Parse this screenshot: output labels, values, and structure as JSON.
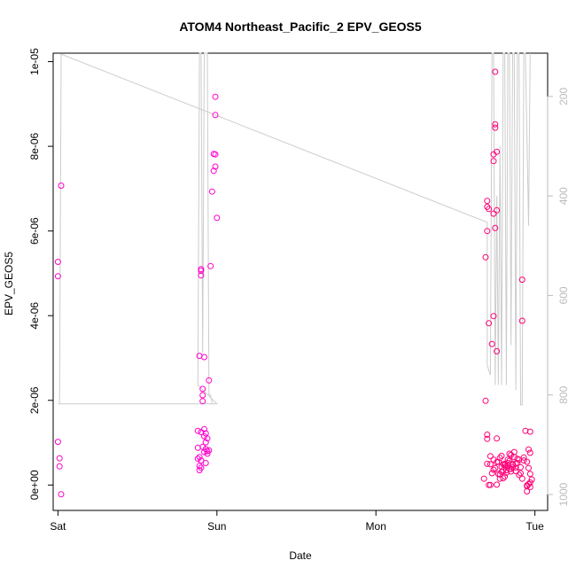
{
  "chart_data": {
    "type": "scatter",
    "title": "ATOM4 Northeast_Pacific_2 EPV_GEOS5",
    "xlabel": "Date",
    "ylabel": "EPV_GEOS5",
    "x_ticks": [
      "Sat",
      "Sun",
      "Mon",
      "Tue"
    ],
    "x_range_days": [
      -0.03,
      3.08
    ],
    "y_ticks": [
      "0e+00",
      "2e-06",
      "4e-06",
      "6e-06",
      "8e-06",
      "1e-05"
    ],
    "y_tick_values": [
      0,
      2e-06,
      4e-06,
      6e-06,
      8e-06,
      1e-05
    ],
    "ylim": [
      -6e-07,
      1.02e-05
    ],
    "y2_ticks": [
      "200",
      "400",
      "600",
      "800",
      "1000"
    ],
    "y2_tick_values": [
      200,
      400,
      600,
      800,
      1000
    ],
    "y2lim": [
      1032,
      113
    ],
    "y2_reversed": true,
    "point_color": "#ff00cc",
    "point_color_late": "#ff0077",
    "line_color": "#cccccc",
    "grid": false,
    "points": [
      [
        0.02,
        7.07e-06
      ],
      [
        0.0,
        5.27e-06
      ],
      [
        0.0,
        4.93e-06
      ],
      [
        0.0,
        1.02e-06
      ],
      [
        0.01,
        6.3e-07
      ],
      [
        0.01,
        4.4e-07
      ],
      [
        0.02,
        -2.2e-07
      ],
      [
        0.89,
        3.05e-06
      ],
      [
        0.9,
        5.1e-06
      ],
      [
        0.9,
        5.06e-06
      ],
      [
        0.9,
        4.95e-06
      ],
      [
        0.92,
        3.02e-06
      ],
      [
        0.91,
        2.27e-06
      ],
      [
        0.91,
        2.12e-06
      ],
      [
        0.91,
        1.98e-06
      ],
      [
        0.95,
        2.47e-06
      ],
      [
        0.96,
        5.17e-06
      ],
      [
        0.97,
        6.93e-06
      ],
      [
        0.99,
        9.17e-06
      ],
      [
        0.99,
        8.74e-06
      ],
      [
        0.98,
        7.82e-06
      ],
      [
        0.99,
        7.81e-06
      ],
      [
        0.99,
        7.52e-06
      ],
      [
        0.98,
        7.42e-06
      ],
      [
        1.0,
        6.31e-06
      ],
      [
        0.88,
        1.28e-06
      ],
      [
        0.9,
        1.25e-06
      ],
      [
        0.92,
        1.32e-06
      ],
      [
        0.93,
        1.22e-06
      ],
      [
        0.92,
        1.15e-06
      ],
      [
        0.94,
        1.1e-06
      ],
      [
        0.93,
        1.01e-06
      ],
      [
        0.91,
        9e-07
      ],
      [
        0.88,
        8.8e-07
      ],
      [
        0.93,
        8.5e-07
      ],
      [
        0.94,
        8e-07
      ],
      [
        0.92,
        7.8e-07
      ],
      [
        0.94,
        7.4e-07
      ],
      [
        0.89,
        6.6e-07
      ],
      [
        0.88,
        6.2e-07
      ],
      [
        0.9,
        5.8e-07
      ],
      [
        0.93,
        5.2e-07
      ],
      [
        0.89,
        4.5e-07
      ],
      [
        0.9,
        4.1e-07
      ],
      [
        0.89,
        3.5e-07
      ],
      [
        0.95,
        8.2e-07
      ],
      [
        2.7,
        6.71e-06
      ],
      [
        2.7,
        6.57e-06
      ],
      [
        2.71,
        6.52e-06
      ],
      [
        2.7,
        6e-06
      ],
      [
        2.69,
        5.38e-06
      ],
      [
        2.71,
        3.82e-06
      ],
      [
        2.73,
        3.33e-06
      ],
      [
        2.74,
        3.99e-06
      ],
      [
        2.74,
        6.41e-06
      ],
      [
        2.75,
        9.76e-06
      ],
      [
        2.75,
        8.52e-06
      ],
      [
        2.75,
        8.44e-06
      ],
      [
        2.74,
        7.81e-06
      ],
      [
        2.74,
        7.65e-06
      ],
      [
        2.76,
        7.87e-06
      ],
      [
        2.76,
        6.49e-06
      ],
      [
        2.75,
        6.07e-06
      ],
      [
        2.76,
        3.16e-06
      ],
      [
        2.69,
        1.99e-06
      ],
      [
        2.7,
        1.19e-06
      ],
      [
        2.7,
        1.09e-06
      ],
      [
        2.92,
        4.85e-06
      ],
      [
        2.92,
        3.88e-06
      ],
      [
        2.72,
        6.8e-07
      ],
      [
        2.74,
        6e-07
      ],
      [
        2.76,
        5.4e-07
      ],
      [
        2.78,
        6.4e-07
      ],
      [
        2.8,
        4.9e-07
      ],
      [
        2.82,
        4.4e-07
      ],
      [
        2.84,
        5.7e-07
      ],
      [
        2.86,
        5e-07
      ],
      [
        2.88,
        4.1e-07
      ],
      [
        2.9,
        6e-07
      ],
      [
        2.72,
        4.9e-07
      ],
      [
        2.74,
        3.6e-07
      ],
      [
        2.78,
        2.5e-07
      ],
      [
        2.8,
        1.6e-07
      ],
      [
        2.82,
        2.9e-07
      ],
      [
        2.84,
        3.8e-07
      ],
      [
        2.86,
        4.7e-07
      ],
      [
        2.88,
        3.3e-07
      ],
      [
        2.9,
        2.4e-07
      ],
      [
        2.92,
        1.5e-07
      ],
      [
        2.76,
        1.1e-06
      ],
      [
        2.77,
        2.6e-07
      ],
      [
        2.79,
        3.1e-07
      ],
      [
        2.81,
        2e-07
      ],
      [
        2.83,
        6e-07
      ],
      [
        2.85,
        7.1e-07
      ],
      [
        2.87,
        6.6e-07
      ],
      [
        2.89,
        5.2e-07
      ],
      [
        2.91,
        4.2e-07
      ],
      [
        2.93,
        6.5e-07
      ],
      [
        2.94,
        1.28e-06
      ],
      [
        2.97,
        1.26e-06
      ],
      [
        2.96,
        8.4e-07
      ],
      [
        2.97,
        7.6e-07
      ],
      [
        2.95,
        5.5e-07
      ],
      [
        2.96,
        4e-07
      ],
      [
        2.97,
        2.6e-07
      ],
      [
        2.98,
        1.3e-07
      ],
      [
        2.96,
        2e-08
      ],
      [
        2.95,
        -1.5e-07
      ],
      [
        2.97,
        -5e-08
      ],
      [
        2.95,
        -1e-08
      ],
      [
        2.97,
        6e-08
      ],
      [
        2.72,
        0.0
      ],
      [
        2.76,
        1e-08
      ],
      [
        2.78,
        1.5e-07
      ],
      [
        2.8,
        3.5e-07
      ],
      [
        2.82,
        3.5e-07
      ],
      [
        2.83,
        4.5e-07
      ],
      [
        2.85,
        3.8e-07
      ],
      [
        2.68,
        1.5e-07
      ],
      [
        2.7,
        5e-07
      ],
      [
        2.71,
        0.0
      ],
      [
        2.73,
        2.8e-07
      ],
      [
        2.75,
        4e-07
      ],
      [
        2.77,
        5.5e-07
      ],
      [
        2.79,
        6.9e-07
      ],
      [
        2.81,
        5e-07
      ],
      [
        2.84,
        7.4e-07
      ],
      [
        2.87,
        7.8e-07
      ],
      [
        2.89,
        6.2e-07
      ],
      [
        2.91,
        2.8e-07
      ],
      [
        2.93,
        5.8e-07
      ],
      [
        2.95,
        -3e-08
      ],
      [
        2.79,
        4.3e-07
      ],
      [
        2.81,
        4.7e-07
      ],
      [
        2.83,
        5.2e-07
      ],
      [
        2.85,
        3.2e-07
      ],
      [
        2.86,
        4.2e-07
      ],
      [
        2.88,
        5e-07
      ]
    ],
    "line_pressure": [
      [
        0.01,
        818
      ],
      [
        0.02,
        115
      ],
      [
        2.7,
        453
      ],
      [
        2.7,
        740
      ],
      [
        2.72,
        760
      ],
      [
        2.73,
        85
      ],
      [
        2.74,
        85
      ],
      [
        2.75,
        780
      ],
      [
        2.76,
        400
      ],
      [
        2.77,
        780
      ],
      [
        2.78,
        300
      ],
      [
        2.79,
        780
      ],
      [
        2.8,
        85
      ],
      [
        2.81,
        85
      ],
      [
        2.82,
        780
      ],
      [
        2.83,
        85
      ],
      [
        2.84,
        85
      ],
      [
        2.85,
        700
      ],
      [
        2.86,
        85
      ],
      [
        2.87,
        85
      ],
      [
        2.88,
        790
      ],
      [
        2.89,
        85
      ],
      [
        2.9,
        85
      ],
      [
        2.91,
        820
      ],
      [
        2.92,
        820
      ],
      [
        2.93,
        85
      ],
      [
        2.94,
        85
      ],
      [
        2.96,
        460
      ],
      [
        2.97,
        85
      ]
    ],
    "line_pressure_sun": [
      [
        0.0,
        818
      ],
      [
        1.0,
        818
      ],
      [
        0.88,
        780
      ],
      [
        0.89,
        85
      ],
      [
        0.9,
        85
      ],
      [
        0.91,
        715
      ],
      [
        0.92,
        85
      ],
      [
        0.94,
        85
      ],
      [
        0.95,
        800
      ],
      [
        0.96,
        800
      ],
      [
        0.97,
        818
      ]
    ]
  }
}
